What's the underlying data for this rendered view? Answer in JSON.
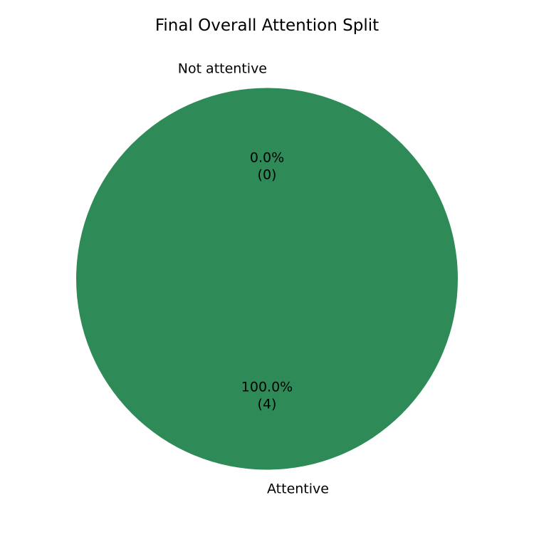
{
  "chart_data": {
    "type": "pie",
    "title": "Final Overall Attention Split",
    "slices": [
      {
        "label": "Not attentive",
        "value": 0,
        "percent_label": "0.0%",
        "count_label": "(0)",
        "color": "#d9534f"
      },
      {
        "label": "Attentive",
        "value": 4,
        "percent_label": "100.0%",
        "count_label": "(4)",
        "color": "#2e8b57"
      }
    ],
    "start_angle_deg": 90,
    "direction": "counterclockwise",
    "legend": "none"
  }
}
